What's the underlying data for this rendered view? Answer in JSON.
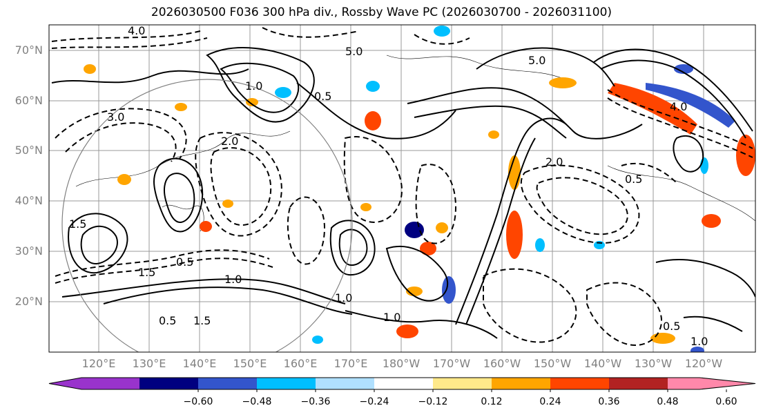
{
  "title": "2026030500 F036 300 hPa div., Rossby Wave PC (2026030700 - 2026031100)",
  "lat_labels": [
    "70°N",
    "60°N",
    "50°N",
    "40°N",
    "30°N",
    "20°N"
  ],
  "lon_labels": [
    "120°E",
    "130°E",
    "140°E",
    "150°E",
    "160°E",
    "170°E",
    "180°W",
    "170°W",
    "160°W",
    "150°W",
    "140°W",
    "130°W",
    "120°W"
  ],
  "contour_labels": [
    "4.0",
    "5.0",
    "0.5",
    "1.0",
    "1.5",
    "2.0",
    "3.0",
    "5.0",
    "1.0",
    "0.5",
    "1.5",
    "0.5",
    "1.0",
    "1.5",
    "1.0",
    "0.5",
    "4.0",
    "2.0",
    "0.5",
    "1.0"
  ],
  "colorbar": {
    "ticks": [
      "−0.60",
      "−0.48",
      "−0.36",
      "−0.24",
      "−0.12",
      "0.12",
      "0.24",
      "0.36",
      "0.48",
      "0.60"
    ],
    "colors": [
      "#9933cc",
      "#000080",
      "#3355cc",
      "#00bfff",
      "#b0e0ff",
      "#ffffff",
      "#ffe98a",
      "#ffa500",
      "#ff4500",
      "#b22222",
      "#ff88aa"
    ]
  }
}
